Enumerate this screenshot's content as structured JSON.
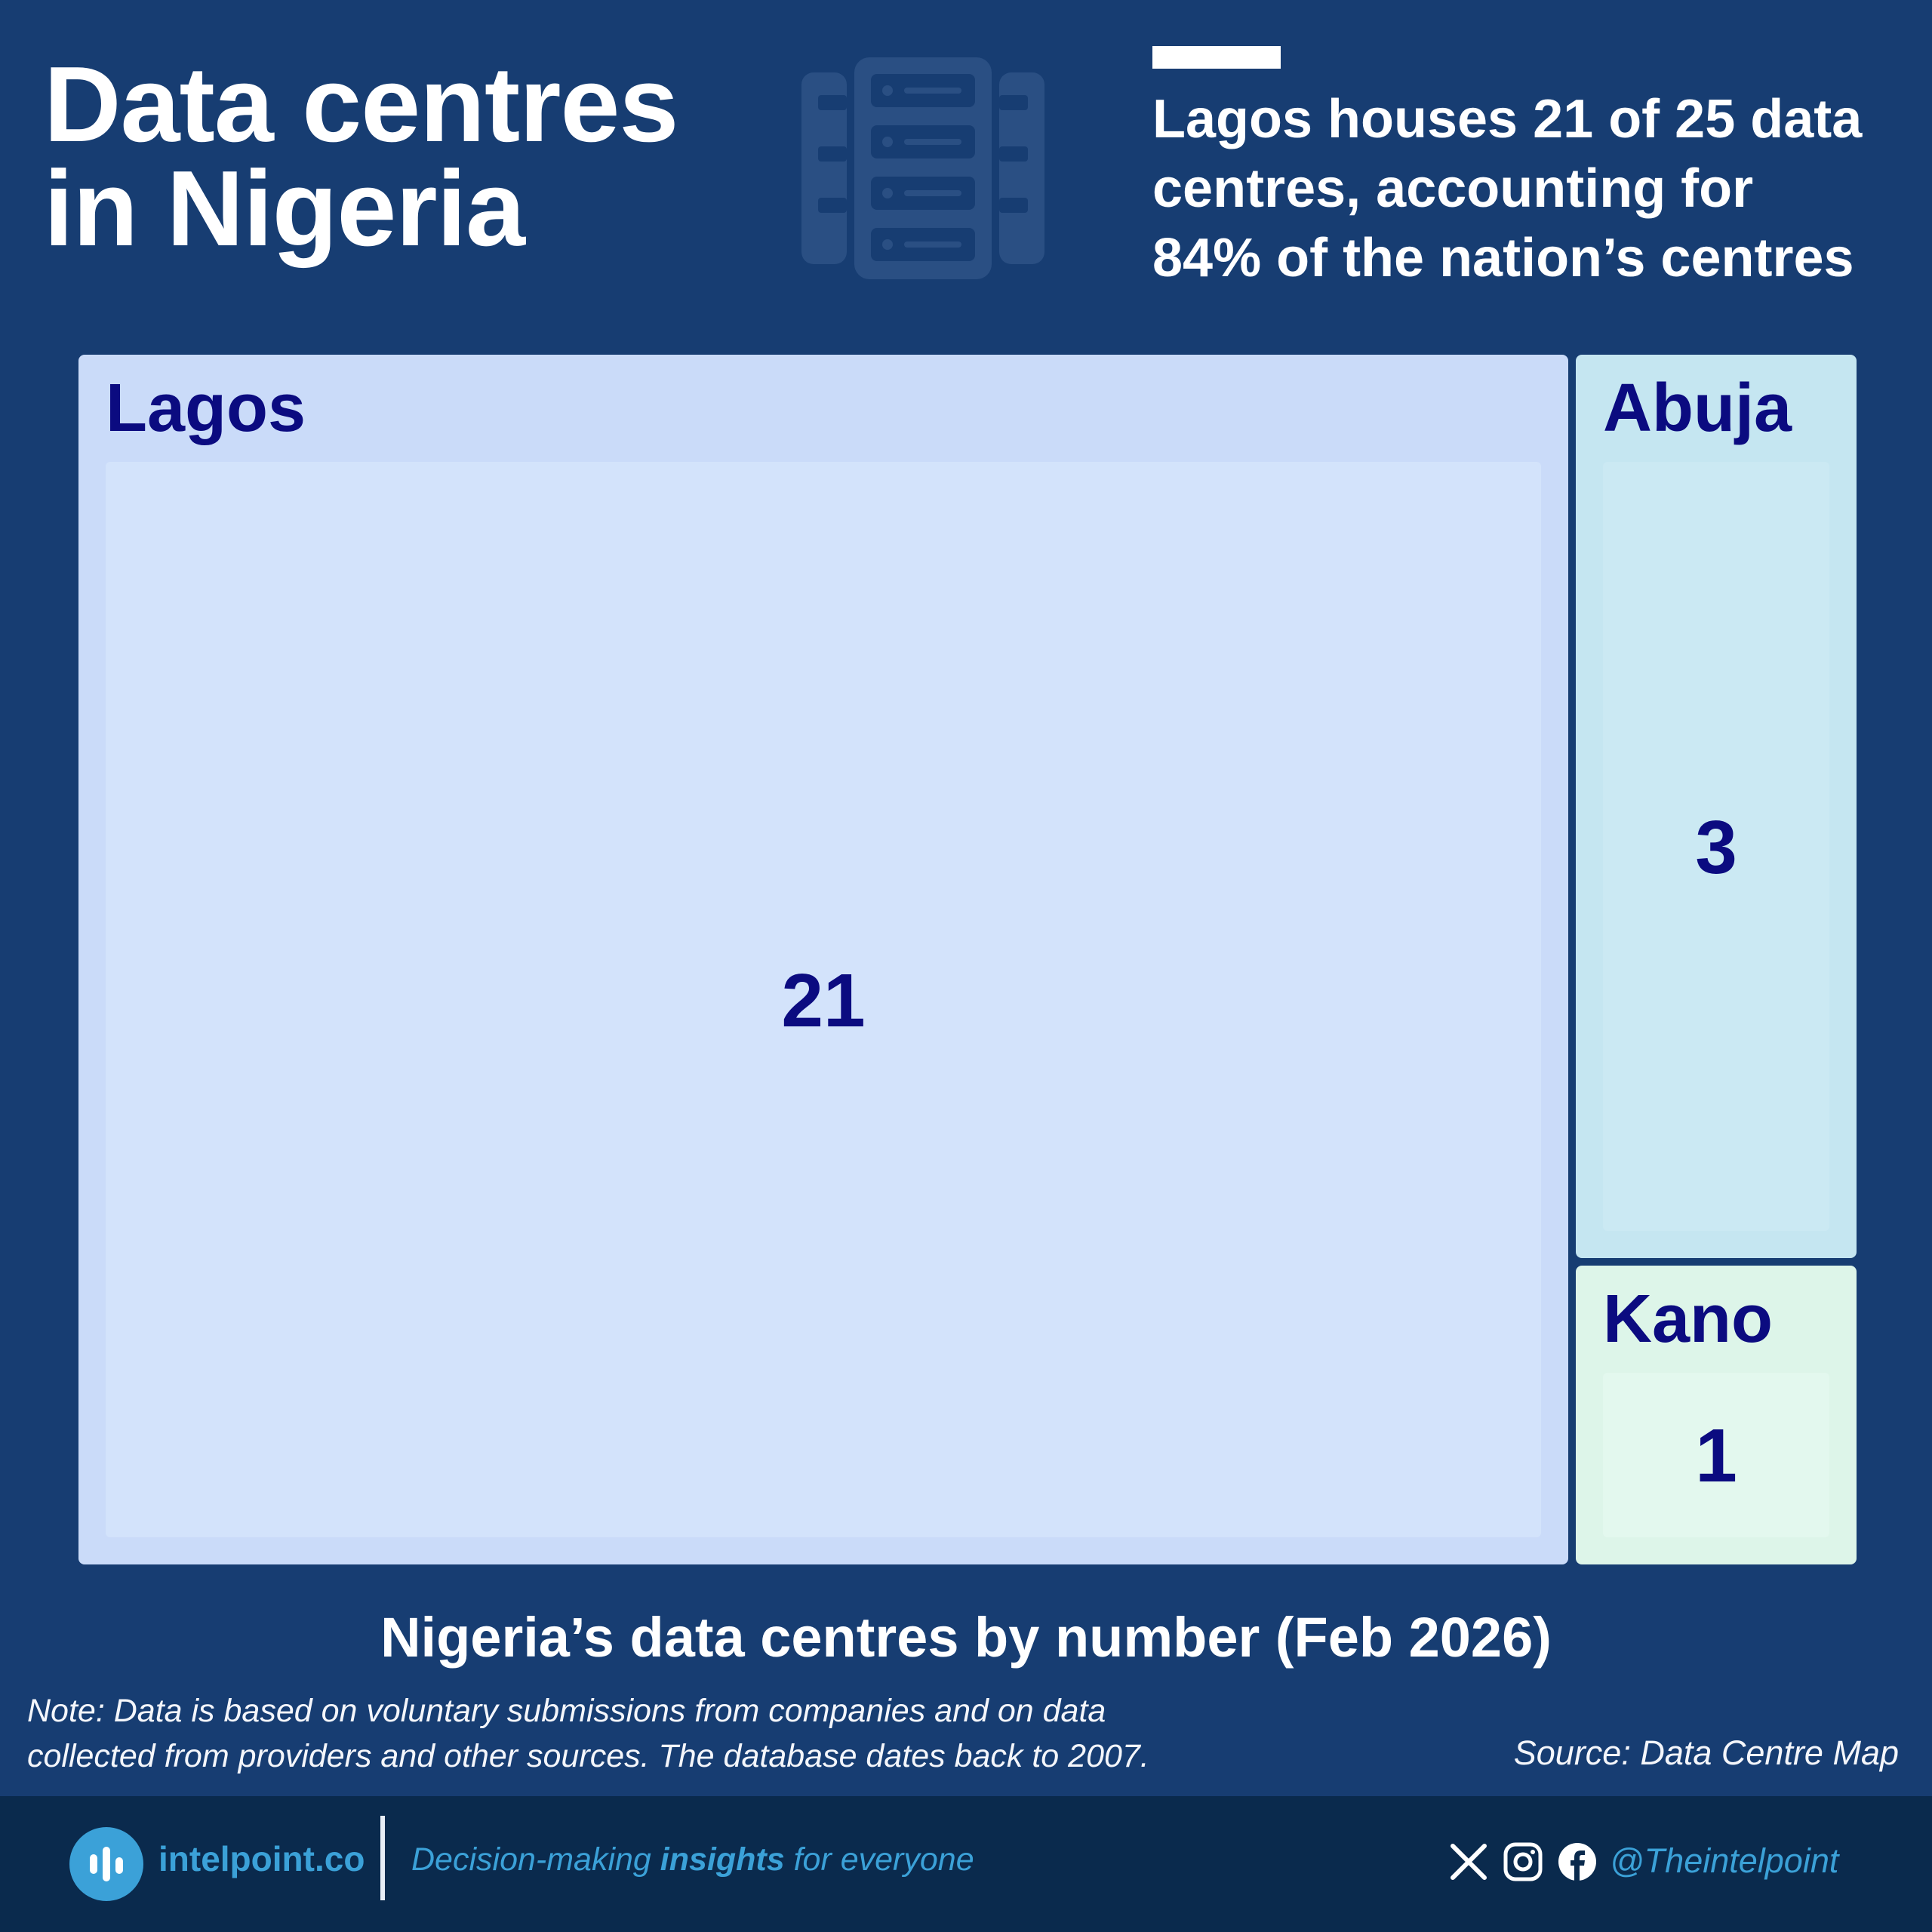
{
  "header": {
    "title_line1": "Data centres",
    "title_line2": "in Nigeria",
    "headline_line1": "Lagos houses 21 of 25 data",
    "headline_line2": "centres, accounting for",
    "headline_line3": "84% of the nation’s centres"
  },
  "chart_data": {
    "type": "treemap",
    "title": "Nigeria’s data centres by number (Feb 2026)",
    "categories": [
      "Lagos",
      "Abuja",
      "Kano"
    ],
    "values": [
      21,
      3,
      1
    ],
    "colors": [
      "#cadbf9",
      "#c5e6f1",
      "#ddf5e9"
    ],
    "inner_colors": [
      "#d3e3fb",
      "#cbe9f3",
      "#e3f8ee"
    ]
  },
  "notes": {
    "note_line1": "Note: Data is based on voluntary submissions from companies and on data",
    "note_line2": "collected from providers and other sources. The database dates back to 2007.",
    "source": "Source: Data Centre Map"
  },
  "footer": {
    "brand": "intelpoint.co",
    "tagline_pre": "Decision-making ",
    "tagline_bold": "insights",
    "tagline_post": " for everyone",
    "handle": "@Theintelpoint",
    "icons": [
      "x-icon",
      "instagram-icon",
      "facebook-icon"
    ]
  },
  "colors": {
    "background": "#173d72",
    "footer_background": "#0a2a4d",
    "label_text": "#0b0b80",
    "brand_accent": "#3ba1d8"
  }
}
